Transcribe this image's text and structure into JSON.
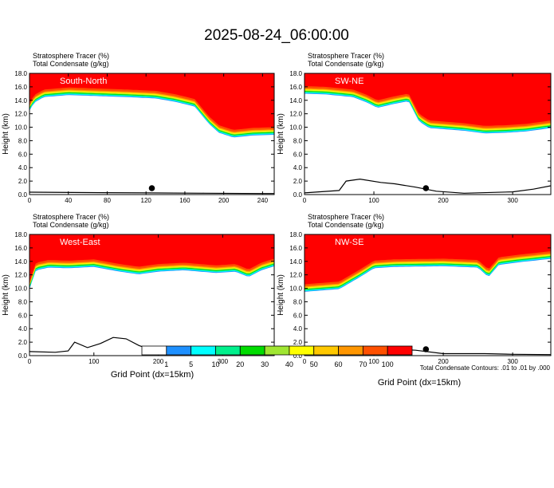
{
  "figure": {
    "title": "2025-08-24_06:00:00",
    "footnote": "Total Condensate Contours: .01 to .01 by .000",
    "xlabel": "Grid Point (dx=15km)",
    "ylabel": "Height (km)"
  },
  "colorbar": {
    "labels": [
      "1",
      "5",
      "10",
      "20",
      "30",
      "40",
      "50",
      "60",
      "70",
      "100"
    ],
    "colors": [
      "#ffffff",
      "#1e90ff",
      "#00ffff",
      "#00f08c",
      "#00dc00",
      "#a0e632",
      "#ffff00",
      "#ffc800",
      "#ff9600",
      "#ff5000",
      "#ff0000"
    ]
  },
  "chart_data": [
    {
      "type": "heatmap",
      "panel_label": "South-North",
      "legend": [
        "Stratosphere Tracer   (%)",
        "Total Condensate   (g/kg)"
      ],
      "xlim": [
        0,
        252
      ],
      "ylim": [
        0,
        18
      ],
      "xticks": [
        0,
        40,
        80,
        120,
        160,
        200,
        240
      ],
      "yticks": [
        0,
        2,
        4,
        6,
        8,
        10,
        12,
        14,
        16,
        18
      ],
      "yticklabels": [
        "0.0",
        "2.0",
        "4.0",
        "6.0",
        "8.0",
        "10.0",
        "12.0",
        "14.0",
        "16.0",
        "18.0"
      ],
      "tropopause_km": [
        [
          0,
          13.6
        ],
        [
          5,
          14.8
        ],
        [
          15,
          15.6
        ],
        [
          40,
          15.9
        ],
        [
          80,
          15.7
        ],
        [
          100,
          15.6
        ],
        [
          130,
          15.4
        ],
        [
          150,
          14.9
        ],
        [
          170,
          14.2
        ],
        [
          185,
          11.6
        ],
        [
          195,
          10.3
        ],
        [
          210,
          9.6
        ],
        [
          230,
          9.9
        ],
        [
          252,
          10.0
        ]
      ],
      "terrain_km": [
        [
          0,
          0.35
        ],
        [
          60,
          0.3
        ],
        [
          120,
          0.25
        ],
        [
          180,
          0.2
        ],
        [
          240,
          0.15
        ],
        [
          252,
          0.15
        ]
      ],
      "marker_x": 126
    },
    {
      "type": "heatmap",
      "panel_label": "SW-NE",
      "legend": [
        "Stratosphere Tracer   (%)",
        "Total Condensate   (g/kg)"
      ],
      "xlim": [
        0,
        355
      ],
      "ylim": [
        0,
        18
      ],
      "xticks": [
        0,
        100,
        200,
        300
      ],
      "yticks": [
        0,
        2,
        4,
        6,
        8,
        10,
        12,
        14,
        16,
        18
      ],
      "yticklabels": [
        "0.0",
        "2.0",
        "4.0",
        "6.0",
        "8.0",
        "10.0",
        "12.0",
        "14.0",
        "16.0",
        "18.0"
      ],
      "tropopause_km": [
        [
          0,
          16.1
        ],
        [
          30,
          16.0
        ],
        [
          70,
          15.6
        ],
        [
          90,
          14.8
        ],
        [
          105,
          14.0
        ],
        [
          130,
          14.6
        ],
        [
          150,
          15.0
        ],
        [
          165,
          12.0
        ],
        [
          180,
          11.0
        ],
        [
          230,
          10.6
        ],
        [
          260,
          10.2
        ],
        [
          290,
          10.3
        ],
        [
          320,
          10.5
        ],
        [
          355,
          11.0
        ]
      ],
      "terrain_km": [
        [
          0,
          0.25
        ],
        [
          50,
          0.6
        ],
        [
          60,
          2.0
        ],
        [
          80,
          2.3
        ],
        [
          110,
          1.8
        ],
        [
          130,
          1.6
        ],
        [
          160,
          1.1
        ],
        [
          190,
          0.5
        ],
        [
          230,
          0.2
        ],
        [
          300,
          0.4
        ],
        [
          330,
          0.8
        ],
        [
          355,
          1.3
        ]
      ],
      "marker_x": 175
    },
    {
      "type": "heatmap",
      "panel_label": "West-East",
      "legend": [
        "Stratosphere Tracer   (%)",
        "Total Condensate   (g/kg)"
      ],
      "xlim": [
        0,
        380
      ],
      "ylim": [
        0,
        18
      ],
      "xticks": [
        0,
        100,
        200,
        300
      ],
      "yticks": [
        0,
        2,
        4,
        6,
        8,
        10,
        12,
        14,
        16,
        18
      ],
      "yticklabels": [
        "0.0",
        "2.0",
        "4.0",
        "6.0",
        "8.0",
        "10.0",
        "12.0",
        "14.0",
        "16.0",
        "18.0"
      ],
      "tropopause_km": [
        [
          0,
          11.0
        ],
        [
          10,
          13.8
        ],
        [
          30,
          14.2
        ],
        [
          60,
          14.1
        ],
        [
          100,
          14.3
        ],
        [
          140,
          13.6
        ],
        [
          170,
          13.2
        ],
        [
          200,
          13.6
        ],
        [
          240,
          13.8
        ],
        [
          290,
          13.4
        ],
        [
          320,
          13.6
        ],
        [
          340,
          12.8
        ],
        [
          360,
          13.8
        ],
        [
          380,
          14.4
        ]
      ],
      "terrain_km": [
        [
          0,
          0.6
        ],
        [
          40,
          0.5
        ],
        [
          60,
          0.7
        ],
        [
          70,
          2.0
        ],
        [
          90,
          1.2
        ],
        [
          110,
          1.8
        ],
        [
          130,
          2.7
        ],
        [
          150,
          2.5
        ],
        [
          170,
          1.5
        ],
        [
          200,
          0.5
        ],
        [
          250,
          0.4
        ],
        [
          300,
          0.3
        ],
        [
          380,
          0.2
        ]
      ],
      "marker_x": 192
    },
    {
      "type": "heatmap",
      "panel_label": "NW-SE",
      "legend": [
        "Stratosphere Tracer   (%)",
        "Total Condensate   (g/kg)"
      ],
      "xlim": [
        0,
        355
      ],
      "ylim": [
        0,
        18
      ],
      "xticks": [
        0,
        100,
        200,
        300
      ],
      "yticks": [
        0,
        2,
        4,
        6,
        8,
        10,
        12,
        14,
        16,
        18
      ],
      "yticklabels": [
        "0.0",
        "2.0",
        "4.0",
        "6.0",
        "8.0",
        "10.0",
        "12.0",
        "14.0",
        "16.0",
        "18.0"
      ],
      "tropopause_km": [
        [
          0,
          10.6
        ],
        [
          50,
          11.0
        ],
        [
          80,
          12.8
        ],
        [
          100,
          14.1
        ],
        [
          130,
          14.3
        ],
        [
          200,
          14.4
        ],
        [
          250,
          14.2
        ],
        [
          265,
          12.8
        ],
        [
          280,
          14.6
        ],
        [
          310,
          15.0
        ],
        [
          355,
          15.5
        ]
      ],
      "terrain_km": [
        [
          0,
          1.3
        ],
        [
          40,
          1.0
        ],
        [
          80,
          1.1
        ],
        [
          120,
          1.0
        ],
        [
          160,
          0.8
        ],
        [
          200,
          0.3
        ],
        [
          260,
          0.3
        ],
        [
          300,
          0.2
        ],
        [
          355,
          0.15
        ]
      ],
      "marker_x": 175
    }
  ]
}
